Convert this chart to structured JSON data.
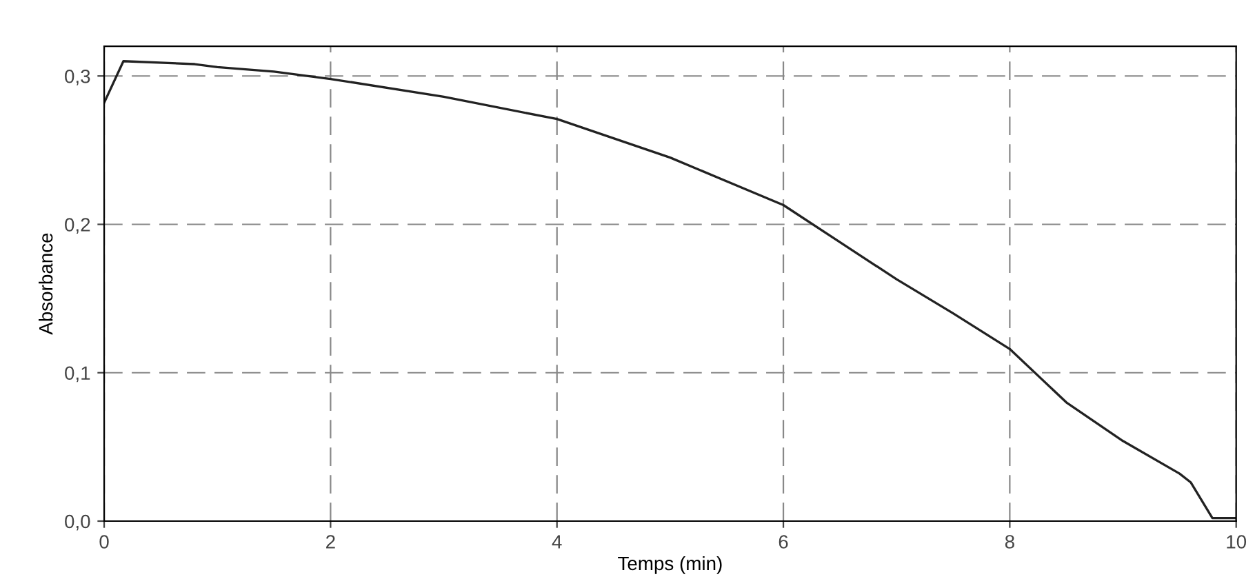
{
  "chart_data": {
    "type": "line",
    "xlabel": "Temps (min)",
    "ylabel": "Absorbance",
    "x": [
      0,
      0.17,
      0.8,
      1,
      1.5,
      2,
      3,
      4,
      5,
      6,
      6.5,
      7,
      7.5,
      8,
      8.5,
      9,
      9.5,
      9.6,
      9.79,
      10
    ],
    "series": [
      {
        "color": "#222222",
        "values": [
          0.282,
          0.31,
          0.308,
          0.306,
          0.303,
          0.298,
          0.286,
          0.271,
          0.245,
          0.213,
          0.188,
          0.163,
          0.14,
          0.116,
          0.08,
          0.054,
          0.032,
          0.026,
          0.002,
          0.002
        ]
      }
    ],
    "xlim": [
      0,
      10
    ],
    "ylim": [
      0,
      0.32
    ],
    "xticks": [
      0,
      2,
      4,
      6,
      8,
      10
    ],
    "yticks": [
      {
        "value": 0,
        "label": "0,0"
      },
      {
        "value": 0.1,
        "label": "0,1"
      },
      {
        "value": 0.2,
        "label": "0,2"
      },
      {
        "value": 0.3,
        "label": "0,3"
      }
    ],
    "grid": true,
    "marker": "none",
    "line_style": "solid"
  }
}
